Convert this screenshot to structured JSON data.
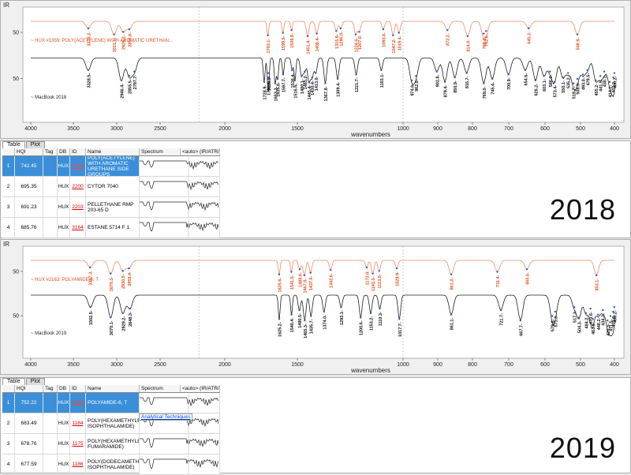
{
  "panels": [
    {
      "year": "2018",
      "ir": {
        "tag": "IR",
        "ref_label": "~ HUX #1359: POLY(ACETYLENE) WITH AROMATIC URETHAN...",
        "sample_label": "~ MacBook 2018",
        "xlabel": "wavenumbers",
        "yticks": [
          "50",
          "50"
        ],
        "xticks": [
          "4000",
          "3500",
          "3000",
          "2500",
          "2000",
          "1500",
          "1000",
          "900",
          "800",
          "700",
          "600",
          "500",
          "400"
        ],
        "ref_peaks": [
          "3328.2",
          "3031.1",
          "2926.2",
          "2855.8",
          "1703.1",
          "1599.5",
          "1539.9",
          "1451.4",
          "1408.4",
          "1315.9",
          "1295.0",
          "1224.0",
          "1207.0",
          "1093.8",
          "1047.2",
          "1019.4",
          "872.2",
          "814.0",
          "769.0",
          "762.6",
          "645.2",
          "508.9"
        ],
        "sample_peaks": [
          "3328.5",
          "2946.4",
          "2855.5",
          "2797.7",
          "1728.9",
          "1701.4",
          "1699.5",
          "1653.2",
          "1635.8",
          "1597.7",
          "1536.4",
          "1516.6",
          "1480.1",
          "1465.2",
          "1445.4",
          "1430.4",
          "1413.0",
          "1367.8",
          "1309.4",
          "1221.7",
          "1103.1",
          "974.6",
          "962.8",
          "902.8",
          "879.4",
          "850.9",
          "816.7",
          "769.0",
          "745.4",
          "700.9",
          "654.6",
          "626.2",
          "603.1",
          "586.0",
          "573.4",
          "550.1",
          "535.2",
          "519.7",
          "508.9",
          "493.0",
          "479.5",
          "455.2",
          "441.5",
          "430.1",
          "414.1",
          "403.2",
          "400.2"
        ],
        "colors": {
          "ref": "#f08a68",
          "sample": "#202020",
          "label_ref": "#e05020"
        }
      },
      "table": {
        "tabs": [
          "Table",
          "Plot"
        ],
        "headers": [
          "",
          "HQI",
          "Tag",
          "DB",
          "ID",
          "Name",
          "Spectrum",
          "<auto> (IR/ATR/IR)"
        ],
        "rows": [
          {
            "n": "1",
            "hqi": "742.45",
            "tag": "",
            "db": "HUX",
            "id": "1359",
            "name": "POLY(ACETYLENE) WITH AROMATIC URETHANE SIDE GROUPS",
            "selected": true
          },
          {
            "n": "2",
            "hqi": "695.35",
            "tag": "",
            "db": "HUX",
            "id": "2200",
            "name": "CYTOR 7040",
            "selected": false
          },
          {
            "n": "3",
            "hqi": "691.23",
            "tag": "",
            "db": "HUX",
            "id": "2203",
            "name": "PELLETHANE RMP 203-65 D",
            "selected": false
          },
          {
            "n": "4",
            "hqi": "685.76",
            "tag": "",
            "db": "HUX",
            "id": "3164",
            "name": "ESTANE 5714 F 1",
            "selected": false
          }
        ]
      }
    },
    {
      "year": "2019",
      "ir": {
        "tag": "IR",
        "ref_label": "~ HUX #2163: POLYAMIDE-6, T",
        "sample_label": "~ MacBook 2019",
        "xlabel": "wavenumbers",
        "yticks": [
          "50",
          "50"
        ],
        "xticks": [
          "4000",
          "3500",
          "3000",
          "2500",
          "2000",
          "1500",
          "1000",
          "900",
          "800",
          "700",
          "600",
          "500",
          "400"
        ],
        "ref_peaks": [
          "3307.3",
          "3070.3",
          "2930.5",
          "2859.4",
          "1625.6",
          "1541.5",
          "1488.8",
          "1467.0",
          "1437.6",
          "1342.6",
          "1172.0",
          "1143.3",
          "1113.0",
          "1029.9",
          "861.2",
          "731.4",
          "650.0",
          "453.1"
        ],
        "sample_peaks": [
          "3302.5",
          "3070.1",
          "2929.2",
          "2848.3",
          "1625.2",
          "1540.4",
          "1490.5",
          "1465.3",
          "1435.7",
          "1374.0",
          "1293.1",
          "1200.6",
          "1153.2",
          "1110.3",
          "1017.7",
          "861.1",
          "721.7",
          "667.7",
          "579.6",
          "571.3",
          "517.3",
          "504.3",
          "484.2",
          "470.6",
          "463.8",
          "448.2",
          "434.3",
          "420.3",
          "411.5",
          "403.6",
          "400.2"
        ],
        "colors": {
          "ref": "#f08a68",
          "sample": "#202020",
          "label_ref": "#e05020"
        }
      },
      "table": {
        "tabs": [
          "Table",
          "Plot"
        ],
        "headers": [
          "",
          "HQI",
          "Tag",
          "DB",
          "ID",
          "Name",
          "Spectrum",
          "<auto> (IR/ATR/IR)"
        ],
        "tooltip": "Analytical Techniques",
        "rows": [
          {
            "n": "1",
            "hqi": "752.22",
            "tag": "",
            "db": "HUX",
            "id": "2163",
            "name": "POLYAMIDE-6, T",
            "selected": true
          },
          {
            "n": "2",
            "hqi": "683.49",
            "tag": "",
            "db": "HUX",
            "id": "1184",
            "name": "POLY(HEXAMETHYLENE ISOPHTHALAMIDE)",
            "selected": false
          },
          {
            "n": "3",
            "hqi": "678.76",
            "tag": "",
            "db": "HUX",
            "id": "1175",
            "name": "POLY(HEXAMETHYLENE FUMARAMIDE)",
            "selected": false
          },
          {
            "n": "4",
            "hqi": "677.59",
            "tag": "",
            "db": "HUX",
            "id": "1186",
            "name": "POLY(DODECAMETHYLENE ISOPHTHALAMIDE)",
            "selected": false
          }
        ]
      }
    }
  ]
}
